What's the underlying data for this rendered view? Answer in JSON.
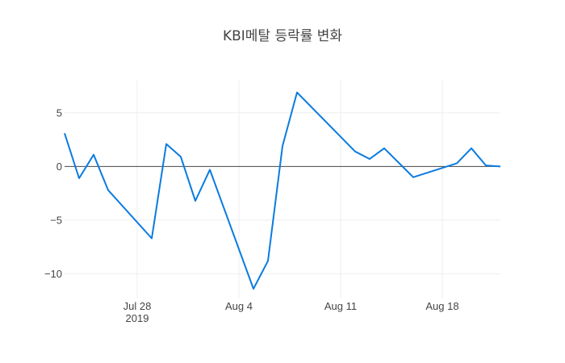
{
  "chart_data": {
    "type": "line",
    "title": "KBI메탈 등락률 변화",
    "xlabel": "",
    "ylabel": "",
    "x": [
      "2019-07-23",
      "2019-07-24",
      "2019-07-25",
      "2019-07-26",
      "2019-07-29",
      "2019-07-30",
      "2019-07-31",
      "2019-08-01",
      "2019-08-02",
      "2019-08-05",
      "2019-08-06",
      "2019-08-07",
      "2019-08-08",
      "2019-08-12",
      "2019-08-13",
      "2019-08-14",
      "2019-08-16",
      "2019-08-19",
      "2019-08-20",
      "2019-08-21",
      "2019-08-22"
    ],
    "series": [
      {
        "values": [
          3.1,
          -1.1,
          1.1,
          -2.2,
          -6.7,
          2.1,
          0.9,
          -3.2,
          -0.3,
          -11.4,
          -8.8,
          1.9,
          6.9,
          1.4,
          0.7,
          1.7,
          -1.0,
          0.3,
          1.7,
          0.1,
          0.0
        ]
      }
    ],
    "xlim": [
      "2019-07-23",
      "2019-08-22"
    ],
    "ylim": [
      -12.3,
      8.0
    ],
    "x_ticks": [
      {
        "date": "2019-07-28",
        "label": "Jul 28",
        "sublabel": "2019"
      },
      {
        "date": "2019-08-04",
        "label": "Aug 4",
        "sublabel": ""
      },
      {
        "date": "2019-08-11",
        "label": "Aug 11",
        "sublabel": ""
      },
      {
        "date": "2019-08-18",
        "label": "Aug 18",
        "sublabel": ""
      }
    ],
    "y_ticks": [
      {
        "value": 5,
        "label": "5"
      },
      {
        "value": 0,
        "label": "0"
      },
      {
        "value": -5,
        "label": "−5"
      },
      {
        "value": -10,
        "label": "−10"
      }
    ],
    "grid": true,
    "zero_line": true,
    "line_color": "#0a7be0"
  }
}
